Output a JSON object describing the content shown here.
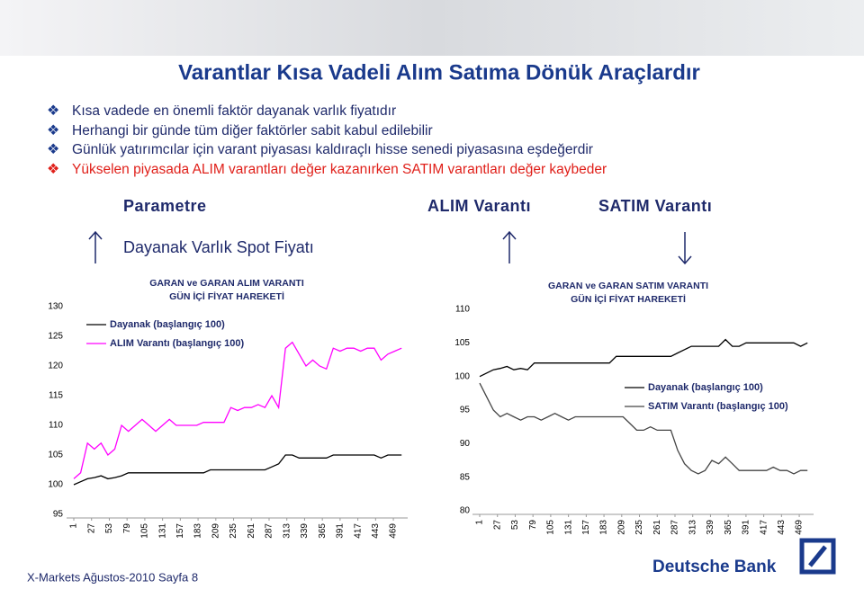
{
  "header": {
    "title": "Varantlar Kısa Vadeli Alım Satıma Dönük Araçlardır"
  },
  "bullets": [
    "Kısa vadede en önemli faktör dayanak varlık fiyatıdır",
    "Herhangi bir günde tüm diğer faktörler sabit kabul edilebilir",
    "Günlük yatırımcılar için varant piyasası kaldıraçlı hisse senedi piyasasına eşdeğerdir",
    "Yükselen piyasada ALIM varantları değer kazanırken SATIM varantları değer kaybeder"
  ],
  "table": {
    "columns": [
      "Parametre",
      "ALIM Varantı",
      "SATIM Varantı"
    ],
    "rows": [
      [
        "Dayanak Varlık Spot Fiyatı"
      ]
    ]
  },
  "chart_data": [
    {
      "type": "line",
      "title": "GARAN ve GARAN ALIM VARANTI",
      "subtitle": "GÜN İÇİ FİYAT HAREKETİ",
      "x": [
        1,
        11,
        21,
        31,
        41,
        51,
        61,
        71,
        81,
        91,
        101,
        111,
        121,
        131,
        141,
        151,
        161,
        171,
        181,
        191,
        201,
        211,
        221,
        231,
        241,
        251,
        261,
        271,
        281,
        291,
        301,
        311,
        321,
        331,
        341,
        351,
        361,
        371,
        381,
        391,
        401,
        411,
        421,
        431,
        441,
        451,
        461,
        471,
        481
      ],
      "xlim": [
        1,
        490
      ],
      "xticks": [
        1,
        27,
        53,
        79,
        105,
        131,
        157,
        183,
        209,
        235,
        261,
        287,
        313,
        339,
        365,
        391,
        417,
        443,
        469
      ],
      "ylim": [
        95,
        130
      ],
      "yticks": [
        95,
        100,
        105,
        110,
        115,
        120,
        125,
        130
      ],
      "legend": "upper left",
      "series": [
        {
          "name": "Dayanak (başlangıç 100)",
          "color": "#000000",
          "values": [
            100,
            100.5,
            101,
            101.2,
            101.5,
            101,
            101.2,
            101.5,
            102,
            102,
            102,
            102,
            102,
            102,
            102,
            102,
            102,
            102,
            102,
            102,
            102.5,
            102.5,
            102.5,
            102.5,
            102.5,
            102.5,
            102.5,
            102.5,
            102.5,
            103,
            103.5,
            105,
            105,
            104.5,
            104.5,
            104.5,
            104.5,
            104.5,
            105,
            105,
            105,
            105,
            105,
            105,
            105,
            104.5,
            105,
            105,
            105
          ]
        },
        {
          "name": "ALIM Varantı (başlangıç 100)",
          "color": "#ff00ff",
          "values": [
            101,
            102,
            107,
            106,
            107,
            105,
            106,
            110,
            109,
            110,
            111,
            110,
            109,
            110,
            111,
            110,
            110,
            110,
            110,
            110.5,
            110.5,
            110.5,
            110.5,
            113,
            112.5,
            113,
            113,
            113.5,
            113,
            115,
            113,
            123,
            124,
            122,
            120,
            121,
            120,
            119.5,
            123,
            122.5,
            123,
            123,
            122.5,
            123,
            123,
            121,
            122,
            122.5,
            123
          ]
        }
      ]
    },
    {
      "type": "line",
      "title": "GARAN ve GARAN SATIM VARANTI",
      "subtitle": "GÜN İÇİ FİYAT HAREKETİ",
      "x": [
        1,
        11,
        21,
        31,
        41,
        51,
        61,
        71,
        81,
        91,
        101,
        111,
        121,
        131,
        141,
        151,
        161,
        171,
        181,
        191,
        201,
        211,
        221,
        231,
        241,
        251,
        261,
        271,
        281,
        291,
        301,
        311,
        321,
        331,
        341,
        351,
        361,
        371,
        381,
        391,
        401,
        411,
        421,
        431,
        441,
        451,
        461,
        471,
        481
      ],
      "xlim": [
        1,
        490
      ],
      "xticks": [
        1,
        27,
        53,
        79,
        105,
        131,
        157,
        183,
        209,
        235,
        261,
        287,
        313,
        339,
        365,
        391,
        417,
        443,
        469
      ],
      "ylim": [
        80,
        110
      ],
      "yticks": [
        80,
        85,
        90,
        95,
        100,
        105,
        110
      ],
      "legend": "center right",
      "series": [
        {
          "name": "Dayanak (başlangıç 100)",
          "color": "#000000",
          "values": [
            100,
            100.5,
            101,
            101.2,
            101.5,
            101,
            101.2,
            101,
            102,
            102,
            102,
            102,
            102,
            102,
            102,
            102,
            102,
            102,
            102,
            102,
            103,
            103,
            103,
            103,
            103,
            103,
            103,
            103,
            103,
            103.5,
            104,
            104.5,
            104.5,
            104.5,
            104.5,
            104.5,
            105.5,
            104.5,
            104.5,
            105,
            105,
            105,
            105,
            105,
            105,
            105,
            105,
            104.5,
            105
          ]
        },
        {
          "name": "SATIM Varantı (başlangıç 100)",
          "color": "#444444",
          "values": [
            99,
            97,
            95,
            94,
            94.5,
            94,
            93.5,
            94,
            94,
            93.5,
            94,
            94.5,
            94,
            93.5,
            94,
            94,
            94,
            94,
            94,
            94,
            94,
            94,
            93,
            92,
            92,
            92.5,
            92,
            92,
            92,
            89,
            87,
            86,
            85.5,
            86,
            87.5,
            87,
            88,
            87,
            86,
            86,
            86,
            86,
            86,
            86.5,
            86,
            86,
            85.5,
            86,
            86
          ]
        }
      ]
    }
  ],
  "footer": {
    "text": "X-Markets Ağustos-2010 Sayfa 8",
    "brand": "Deutsche Bank"
  }
}
